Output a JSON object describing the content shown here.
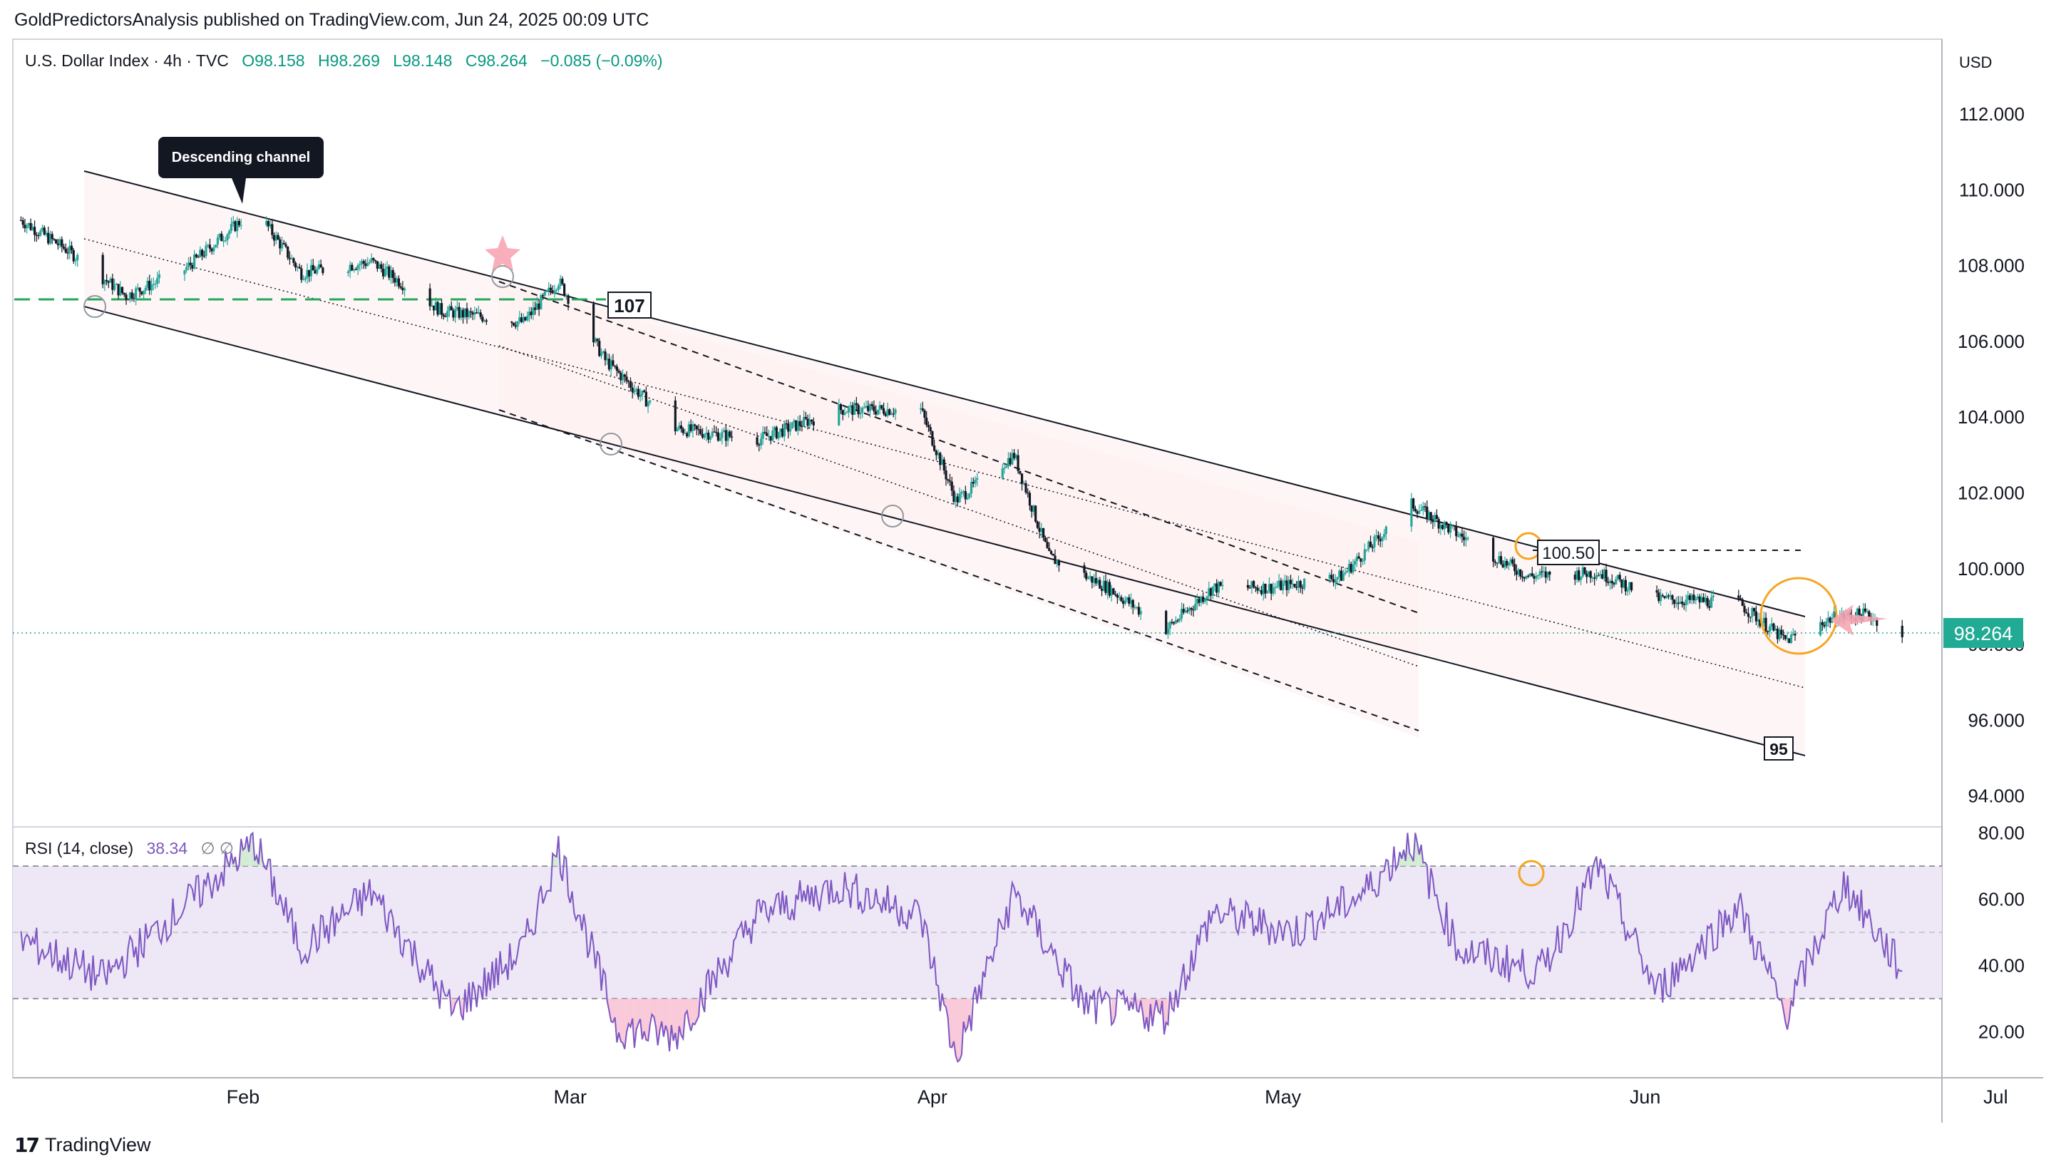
{
  "header": {
    "published_line": "GoldPredictorsAnalysis published on TradingView.com, Jun 24, 2025 00:09 UTC"
  },
  "legend": {
    "symbol": "U.S. Dollar Index · 4h · TVC",
    "open": "O98.158",
    "high": "H98.269",
    "low": "L98.148",
    "close": "C98.264",
    "change": "−0.085 (−0.09%)"
  },
  "axis": {
    "currency": "USD",
    "price_ticks": [
      "112.000",
      "110.000",
      "108.000",
      "106.000",
      "104.000",
      "102.000",
      "100.000",
      "98.000",
      "96.000",
      "94.000"
    ],
    "current_price": "98.264",
    "rsi_ticks": [
      "80.00",
      "60.00",
      "40.00",
      "20.00"
    ],
    "months": [
      "Feb",
      "Mar",
      "Apr",
      "May",
      "Jun",
      "Jul"
    ]
  },
  "annotations": {
    "callout": "Descending channel",
    "level_107": "107",
    "level_100_50": "100.50",
    "level_95": "95"
  },
  "rsi_legend": {
    "label": "RSI (14, close)",
    "value": "38.34",
    "extra": "∅ ∅"
  },
  "colors": {
    "up": "#26a69a",
    "down": "#131722",
    "rsi_line": "#7e57c2",
    "rsi_band": "#ede7f6",
    "price_badge": "#22ab94",
    "support": "#26a65b",
    "highlight": "#f5a623",
    "marker": "#f8a5b4"
  },
  "brand": "TradingView",
  "chart_data": [
    {
      "type": "candlestick",
      "title": "U.S. Dollar Index · 4h · TVC",
      "ylim": [
        93.2,
        113.5
      ],
      "y_ticks": [
        112,
        110,
        108,
        106,
        104,
        102,
        100,
        98,
        96,
        94
      ],
      "x_ticks": [
        "Feb",
        "Mar",
        "Apr",
        "May",
        "Jun",
        "Jul"
      ],
      "approx_close_path": [
        {
          "date": "2025-01-13",
          "value": 109.2
        },
        {
          "date": "2025-01-17",
          "value": 108.4
        },
        {
          "date": "2025-01-22",
          "value": 107.2
        },
        {
          "date": "2025-01-27",
          "value": 107.9
        },
        {
          "date": "2025-02-02",
          "value": 109.5
        },
        {
          "date": "2025-02-06",
          "value": 107.8
        },
        {
          "date": "2025-02-12",
          "value": 108.1
        },
        {
          "date": "2025-02-18",
          "value": 106.8
        },
        {
          "date": "2025-02-25",
          "value": 106.5
        },
        {
          "date": "2025-02-28",
          "value": 107.6
        },
        {
          "date": "2025-03-04",
          "value": 105.5
        },
        {
          "date": "2025-03-10",
          "value": 103.7
        },
        {
          "date": "2025-03-17",
          "value": 103.4
        },
        {
          "date": "2025-03-24",
          "value": 104.2
        },
        {
          "date": "2025-03-31",
          "value": 104.2
        },
        {
          "date": "2025-04-03",
          "value": 101.8
        },
        {
          "date": "2025-04-08",
          "value": 103.0
        },
        {
          "date": "2025-04-11",
          "value": 100.3
        },
        {
          "date": "2025-04-16",
          "value": 99.5
        },
        {
          "date": "2025-04-21",
          "value": 98.4
        },
        {
          "date": "2025-04-25",
          "value": 99.5
        },
        {
          "date": "2025-04-30",
          "value": 99.5
        },
        {
          "date": "2025-05-06",
          "value": 99.8
        },
        {
          "date": "2025-05-12",
          "value": 101.7
        },
        {
          "date": "2025-05-16",
          "value": 100.9
        },
        {
          "date": "2025-05-22",
          "value": 99.8
        },
        {
          "date": "2025-05-28",
          "value": 99.9
        },
        {
          "date": "2025-06-02",
          "value": 99.2
        },
        {
          "date": "2025-06-09",
          "value": 99.1
        },
        {
          "date": "2025-06-13",
          "value": 98.1
        },
        {
          "date": "2025-06-17",
          "value": 98.7
        },
        {
          "date": "2025-06-20",
          "value": 98.8
        },
        {
          "date": "2025-06-23",
          "value": 98.264
        }
      ],
      "current_value": 98.264,
      "support_level": 107.2,
      "channel": {
        "upper": [
          {
            "date": "2025-01-15",
            "value": 110.4
          },
          {
            "date": "2025-06-23",
            "value": 98.8
          }
        ],
        "lower": [
          {
            "date": "2025-01-15",
            "value": 106.8
          },
          {
            "date": "2025-06-23",
            "value": 95.1
          }
        ],
        "mid": [
          {
            "date": "2025-01-15",
            "value": 108.6
          },
          {
            "date": "2025-06-23",
            "value": 96.9
          }
        ]
      },
      "resistance_100_50": 100.5
    },
    {
      "type": "line",
      "title": "RSI (14, close)",
      "ylim": [
        10,
        83
      ],
      "y_ticks": [
        80,
        60,
        40,
        20
      ],
      "bands": [
        30,
        50,
        70
      ],
      "current_value": 38.34,
      "approx_path": [
        {
          "date": "2025-01-13",
          "value": 48
        },
        {
          "date": "2025-01-20",
          "value": 36
        },
        {
          "date": "2025-01-27",
          "value": 58
        },
        {
          "date": "2025-02-02",
          "value": 77
        },
        {
          "date": "2025-02-06",
          "value": 45
        },
        {
          "date": "2025-02-12",
          "value": 62
        },
        {
          "date": "2025-02-19",
          "value": 26
        },
        {
          "date": "2025-02-25",
          "value": 45
        },
        {
          "date": "2025-02-28",
          "value": 75
        },
        {
          "date": "2025-03-05",
          "value": 21
        },
        {
          "date": "2025-03-10",
          "value": 19
        },
        {
          "date": "2025-03-17",
          "value": 55
        },
        {
          "date": "2025-03-24",
          "value": 64
        },
        {
          "date": "2025-03-31",
          "value": 55
        },
        {
          "date": "2025-04-03",
          "value": 12
        },
        {
          "date": "2025-04-08",
          "value": 62
        },
        {
          "date": "2025-04-14",
          "value": 28
        },
        {
          "date": "2025-04-21",
          "value": 25
        },
        {
          "date": "2025-04-25",
          "value": 56
        },
        {
          "date": "2025-05-02",
          "value": 50
        },
        {
          "date": "2025-05-08",
          "value": 62
        },
        {
          "date": "2025-05-12",
          "value": 78
        },
        {
          "date": "2025-05-16",
          "value": 45
        },
        {
          "date": "2025-05-23",
          "value": 38
        },
        {
          "date": "2025-05-28",
          "value": 70
        },
        {
          "date": "2025-06-02",
          "value": 32
        },
        {
          "date": "2025-06-09",
          "value": 58
        },
        {
          "date": "2025-06-13",
          "value": 25
        },
        {
          "date": "2025-06-18",
          "value": 65
        },
        {
          "date": "2025-06-23",
          "value": 38.34
        }
      ]
    }
  ]
}
